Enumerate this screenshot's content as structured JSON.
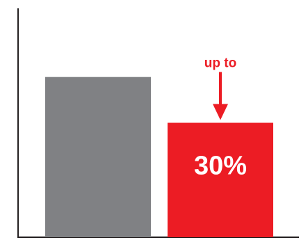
{
  "chart_data": {
    "type": "bar",
    "categories": [
      "",
      ""
    ],
    "values": [
      70,
      50
    ],
    "bar_colors": [
      "#808184",
      "#ec1c24"
    ],
    "data_labels": [
      "",
      "30%"
    ],
    "annotation": {
      "text": "up to",
      "target_index": 1,
      "color": "#ec1c24"
    },
    "ylim": [
      0,
      100
    ],
    "grid": false,
    "axis_color": "#231f20"
  }
}
